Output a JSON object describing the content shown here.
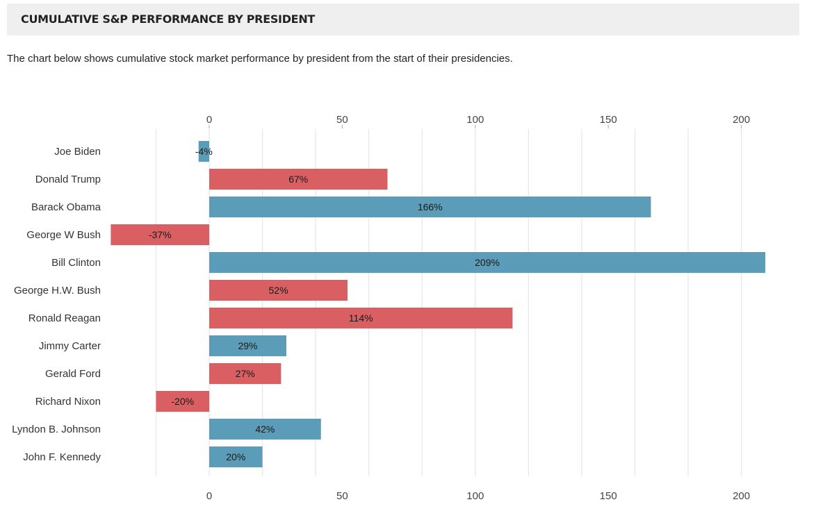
{
  "header": {
    "title": "CUMULATIVE S&P PERFORMANCE BY PRESIDENT"
  },
  "intro": "The chart below shows cumulative stock market performance by president from the start of their presidencies.",
  "colors": {
    "democrat": "#5b9db9",
    "republican": "#d95f63",
    "grid": "#e6e6e6",
    "title_bg": "#efefef"
  },
  "chart_data": {
    "type": "bar",
    "orientation": "horizontal",
    "xlim": [
      -40,
      210
    ],
    "xticks": [
      0,
      50,
      100,
      150,
      200
    ],
    "grid": true,
    "value_suffix": "%",
    "categories": [
      "Joe Biden",
      "Donald Trump",
      "Barack Obama",
      "George W Bush",
      "Bill Clinton",
      "George H.W. Bush",
      "Ronald Reagan",
      "Jimmy Carter",
      "Gerald Ford",
      "Richard Nixon",
      "Lyndon B. Johnson",
      "John F. Kennedy"
    ],
    "values": [
      -4,
      67,
      166,
      -37,
      209,
      52,
      114,
      29,
      27,
      -20,
      42,
      20
    ],
    "bar_colors": [
      "#5b9db9",
      "#d95f63",
      "#5b9db9",
      "#d95f63",
      "#5b9db9",
      "#d95f63",
      "#d95f63",
      "#5b9db9",
      "#d95f63",
      "#d95f63",
      "#5b9db9",
      "#5b9db9"
    ]
  }
}
